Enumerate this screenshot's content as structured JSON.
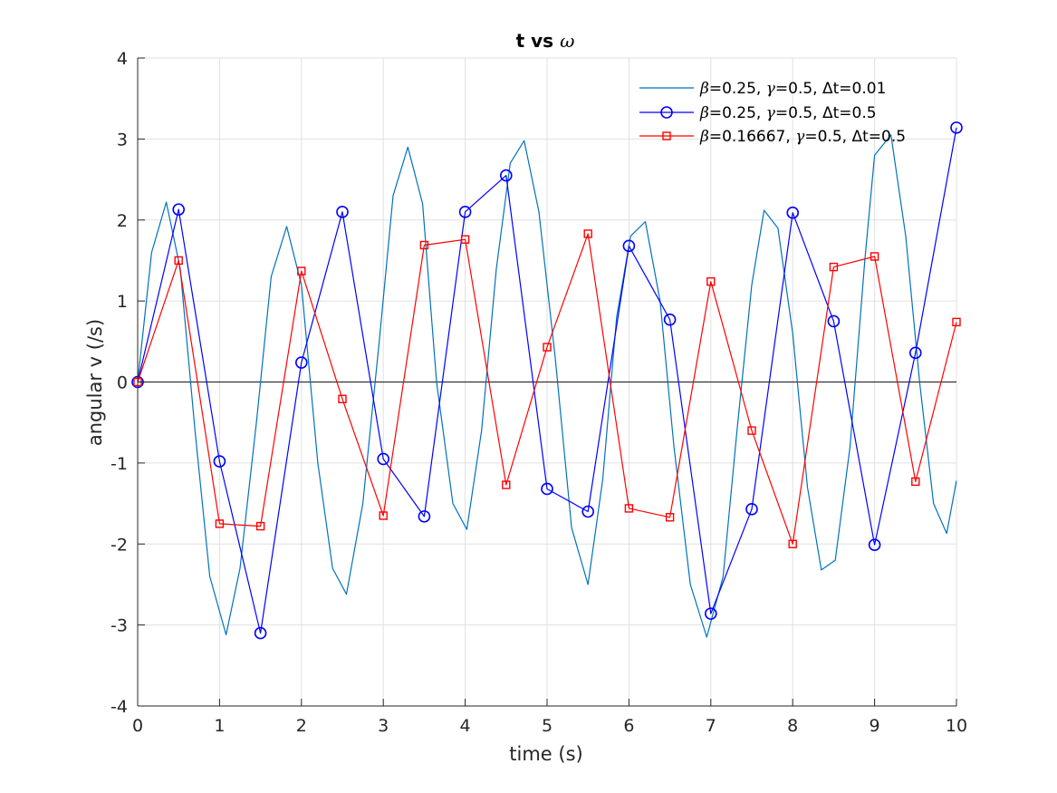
{
  "chart_data": {
    "type": "line",
    "title_prefix": "t vs ",
    "title_symbol": "ω",
    "xlabel": "time (s)",
    "ylabel": "angular v (/s)",
    "xlim": [
      0,
      10
    ],
    "ylim": [
      -4,
      4
    ],
    "xticks": [
      0,
      1,
      2,
      3,
      4,
      5,
      6,
      7,
      8,
      9,
      10
    ],
    "yticks": [
      -4,
      -3,
      -2,
      -1,
      0,
      1,
      2,
      3,
      4
    ],
    "xtick_labels": [
      "0",
      "1",
      "2",
      "3",
      "4",
      "5",
      "6",
      "7",
      "8",
      "9",
      "10"
    ],
    "ytick_labels": [
      "-4",
      "-3",
      "-2",
      "-1",
      "0",
      "1",
      "2",
      "3",
      "4"
    ],
    "grid": true,
    "zero_line": true,
    "legend_position": "top-right",
    "legend_entries": [
      {
        "beta_symbol": "β",
        "beta": "=0.25, ",
        "gamma_symbol": "γ",
        "gamma": "=0.5, ",
        "dt_symbol": "Δ",
        "dt": "t=0.01"
      },
      {
        "beta_symbol": "β",
        "beta": "=0.25, ",
        "gamma_symbol": "γ",
        "gamma": "=0.5, ",
        "dt_symbol": "Δ",
        "dt": "t=0.5"
      },
      {
        "beta_symbol": "β",
        "beta": "=0.16667, ",
        "gamma_symbol": "γ",
        "gamma": "=0.5, ",
        "dt_symbol": "Δ",
        "dt": "t=0.5"
      }
    ],
    "series": [
      {
        "color": "#0072BD",
        "marker": "none",
        "x": [
          0,
          0.17,
          0.35,
          0.52,
          0.7,
          0.88,
          1.08,
          1.25,
          1.45,
          1.63,
          1.82,
          2.0,
          2.2,
          2.38,
          2.55,
          2.75,
          2.95,
          3.12,
          3.3,
          3.48,
          3.65,
          3.85,
          4.02,
          4.2,
          4.38,
          4.55,
          4.72,
          4.9,
          5.1,
          5.3,
          5.5,
          5.68,
          5.85,
          6.02,
          6.2,
          6.38,
          6.55,
          6.75,
          6.95,
          7.15,
          7.32,
          7.5,
          7.65,
          7.82,
          8.0,
          8.18,
          8.35,
          8.52,
          8.7,
          8.88,
          9.0,
          9.2,
          9.38,
          9.55,
          9.72,
          9.88,
          10.0
        ],
        "y": [
          0,
          1.6,
          2.22,
          1.4,
          -0.6,
          -2.4,
          -3.12,
          -2.3,
          -0.5,
          1.3,
          1.92,
          1.2,
          -1.0,
          -2.3,
          -2.62,
          -1.5,
          0.5,
          2.3,
          2.9,
          2.2,
          0.0,
          -1.5,
          -1.82,
          -0.6,
          1.4,
          2.7,
          2.98,
          2.1,
          0.3,
          -1.8,
          -2.5,
          -1.2,
          0.8,
          1.8,
          1.98,
          1.0,
          -0.8,
          -2.5,
          -3.15,
          -2.4,
          -0.6,
          1.2,
          2.12,
          1.9,
          0.6,
          -1.3,
          -2.32,
          -2.2,
          -0.8,
          1.5,
          2.8,
          3.05,
          1.8,
          0.0,
          -1.5,
          -1.87,
          -1.22
        ]
      },
      {
        "color": "#0000FF",
        "marker": "circle",
        "x": [
          0,
          0.5,
          1,
          1.5,
          2,
          2.5,
          3,
          3.5,
          4,
          4.5,
          5,
          5.5,
          6,
          6.5,
          7,
          7.5,
          8,
          8.5,
          9,
          9.5,
          10
        ],
        "y": [
          0,
          2.13,
          -0.98,
          -3.1,
          0.24,
          2.1,
          -0.95,
          -1.66,
          2.1,
          2.55,
          -1.32,
          -1.6,
          1.68,
          0.77,
          -2.86,
          -1.57,
          2.09,
          0.75,
          -2.01,
          0.36,
          3.14
        ]
      },
      {
        "color": "#FF0000",
        "marker": "square",
        "x": [
          0,
          0.5,
          1,
          1.5,
          2,
          2.5,
          3,
          3.5,
          4,
          4.5,
          5,
          5.5,
          6,
          6.5,
          7,
          7.5,
          8,
          8.5,
          9,
          9.5,
          10
        ],
        "y": [
          0,
          1.5,
          -1.75,
          -1.78,
          1.37,
          -0.21,
          -1.65,
          1.69,
          1.76,
          -1.27,
          0.43,
          1.83,
          -1.56,
          -1.67,
          1.24,
          -0.6,
          -2.0,
          1.42,
          1.55,
          -1.23,
          0.74
        ]
      }
    ]
  }
}
